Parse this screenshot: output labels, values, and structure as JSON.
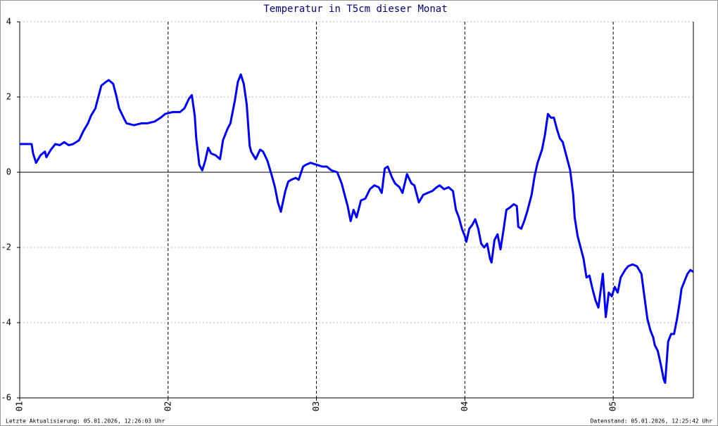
{
  "chart_data": {
    "type": "line",
    "title": "Temperatur in T5cm dieser Monat",
    "footer_left": "Letzte Aktualisierung: 05.01.2026, 12:26:03 Uhr",
    "footer_right": "Datenstand: 05.01.2026, 12:25:42 Uhr",
    "color": "#0000ff",
    "grid": true,
    "xlim": [
      1,
      5.54
    ],
    "ylim": [
      -6,
      4
    ],
    "xticks": [
      {
        "value": 1,
        "label": "01"
      },
      {
        "value": 2,
        "label": "02"
      },
      {
        "value": 3,
        "label": "03"
      },
      {
        "value": 4,
        "label": "04"
      },
      {
        "value": 5,
        "label": "05"
      }
    ],
    "yticks": [
      -6,
      -4,
      -2,
      0,
      2,
      4
    ],
    "x": [
      1.0,
      1.08,
      1.09,
      1.11,
      1.14,
      1.17,
      1.18,
      1.21,
      1.24,
      1.27,
      1.3,
      1.33,
      1.36,
      1.4,
      1.43,
      1.46,
      1.48,
      1.51,
      1.53,
      1.55,
      1.58,
      1.6,
      1.63,
      1.65,
      1.67,
      1.7,
      1.72,
      1.77,
      1.82,
      1.86,
      1.91,
      1.95,
      1.98,
      2.03,
      2.08,
      2.11,
      2.14,
      2.16,
      2.18,
      2.19,
      2.21,
      2.23,
      2.25,
      2.27,
      2.29,
      2.32,
      2.35,
      2.37,
      2.4,
      2.42,
      2.45,
      2.47,
      2.49,
      2.51,
      2.53,
      2.55,
      2.56,
      2.59,
      2.62,
      2.64,
      2.67,
      2.7,
      2.72,
      2.74,
      2.76,
      2.79,
      2.81,
      2.83,
      2.86,
      2.88,
      2.91,
      2.93,
      2.96,
      3.0,
      3.04,
      3.07,
      3.1,
      3.14,
      3.17,
      3.19,
      3.21,
      3.23,
      3.25,
      3.27,
      3.3,
      3.33,
      3.36,
      3.39,
      3.42,
      3.44,
      3.46,
      3.48,
      3.51,
      3.53,
      3.56,
      3.58,
      3.61,
      3.64,
      3.66,
      3.69,
      3.72,
      3.75,
      3.78,
      3.81,
      3.83,
      3.86,
      3.89,
      3.92,
      3.94,
      3.96,
      3.98,
      4.0,
      4.01,
      4.03,
      4.05,
      4.07,
      4.09,
      4.11,
      4.13,
      4.15,
      4.17,
      4.18,
      4.2,
      4.22,
      4.24,
      4.26,
      4.28,
      4.3,
      4.33,
      4.35,
      4.36,
      4.38,
      4.4,
      4.42,
      4.45,
      4.47,
      4.49,
      4.52,
      4.54,
      4.56,
      4.58,
      4.6,
      4.62,
      4.64,
      4.66,
      4.68,
      4.71,
      4.73,
      4.74,
      4.76,
      4.78,
      4.8,
      4.82,
      4.84,
      4.86,
      4.88,
      4.9,
      4.91,
      4.93,
      4.95,
      4.97,
      4.99,
      5.01,
      5.03,
      5.05,
      5.08,
      5.1,
      5.13,
      5.16,
      5.19,
      5.21,
      5.23,
      5.25,
      5.27,
      5.28,
      5.3,
      5.32,
      5.34,
      5.35,
      5.37,
      5.39,
      5.41,
      5.43,
      5.45,
      5.46,
      5.48,
      5.5,
      5.52,
      5.54
    ],
    "values": [
      0.75,
      0.75,
      0.5,
      0.25,
      0.45,
      0.55,
      0.4,
      0.6,
      0.75,
      0.72,
      0.8,
      0.72,
      0.75,
      0.85,
      1.1,
      1.3,
      1.5,
      1.7,
      2.0,
      2.3,
      2.4,
      2.45,
      2.35,
      2.05,
      1.7,
      1.45,
      1.3,
      1.25,
      1.3,
      1.3,
      1.35,
      1.45,
      1.55,
      1.6,
      1.6,
      1.7,
      1.95,
      2.05,
      1.5,
      0.9,
      0.2,
      0.05,
      0.3,
      0.65,
      0.5,
      0.45,
      0.35,
      0.85,
      1.15,
      1.3,
      1.9,
      2.4,
      2.6,
      2.35,
      1.8,
      0.7,
      0.55,
      0.35,
      0.6,
      0.55,
      0.3,
      -0.1,
      -0.4,
      -0.8,
      -1.05,
      -0.5,
      -0.25,
      -0.2,
      -0.15,
      -0.2,
      0.15,
      0.2,
      0.25,
      0.2,
      0.15,
      0.15,
      0.05,
      0.0,
      -0.3,
      -0.6,
      -0.9,
      -1.3,
      -1.0,
      -1.2,
      -0.75,
      -0.7,
      -0.45,
      -0.35,
      -0.4,
      -0.55,
      0.1,
      0.15,
      -0.15,
      -0.3,
      -0.4,
      -0.55,
      -0.05,
      -0.3,
      -0.35,
      -0.8,
      -0.6,
      -0.55,
      -0.5,
      -0.4,
      -0.35,
      -0.45,
      -0.4,
      -0.5,
      -1.0,
      -1.2,
      -1.5,
      -1.7,
      -1.85,
      -1.5,
      -1.4,
      -1.25,
      -1.5,
      -1.9,
      -2.0,
      -1.9,
      -2.3,
      -2.4,
      -1.8,
      -1.65,
      -2.05,
      -1.55,
      -1.0,
      -0.95,
      -0.85,
      -0.9,
      -1.45,
      -1.5,
      -1.3,
      -1.05,
      -0.6,
      -0.1,
      0.25,
      0.6,
      1.0,
      1.55,
      1.45,
      1.45,
      1.15,
      0.9,
      0.8,
      0.5,
      0.05,
      -0.6,
      -1.2,
      -1.7,
      -2.0,
      -2.3,
      -2.8,
      -2.75,
      -3.1,
      -3.4,
      -3.6,
      -3.3,
      -2.7,
      -3.85,
      -3.2,
      -3.3,
      -3.05,
      -3.2,
      -2.8,
      -2.6,
      -2.5,
      -2.45,
      -2.5,
      -2.7,
      -3.3,
      -3.9,
      -4.2,
      -4.4,
      -4.6,
      -4.75,
      -5.1,
      -5.5,
      -5.6,
      -4.5,
      -4.3,
      -4.3,
      -3.9,
      -3.4,
      -3.1,
      -2.9,
      -2.7,
      -2.6,
      -2.65
    ]
  }
}
